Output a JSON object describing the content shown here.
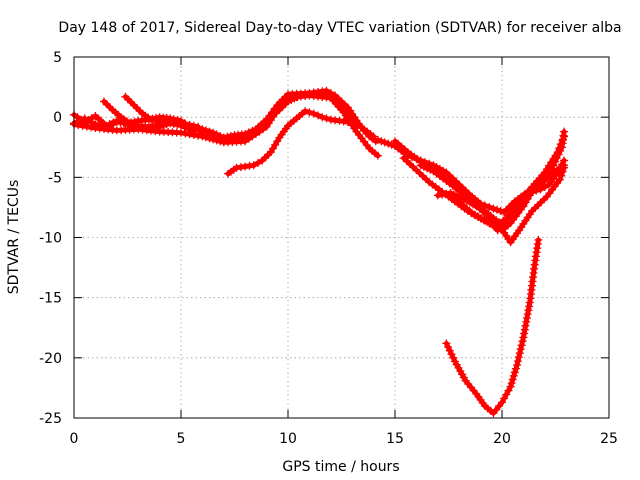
{
  "chart_data": {
    "type": "line",
    "title": "Day 148 of 2017, Sidereal Day-to-day VTEC variation (SDTVAR) for receiver alba",
    "xlabel": "GPS time / hours",
    "ylabel": "SDTVAR / TECUs",
    "xlim": [
      0,
      25
    ],
    "ylim": [
      -25,
      5
    ],
    "xticks": [
      0,
      5,
      10,
      15,
      20,
      25
    ],
    "yticks": [
      -25,
      -20,
      -15,
      -10,
      -5,
      0,
      5
    ],
    "grid": true,
    "legend": "none",
    "series_color": "#ff0000",
    "series": [
      {
        "name": "track-1",
        "points": [
          [
            0,
            -0.6
          ],
          [
            1,
            -0.9
          ],
          [
            2,
            -1.1
          ],
          [
            3,
            -1.0
          ],
          [
            4,
            -1.2
          ],
          [
            5,
            -1.3
          ],
          [
            6,
            -1.6
          ],
          [
            7,
            -2.1
          ],
          [
            8,
            -2.0
          ],
          [
            9,
            -0.8
          ],
          [
            9.5,
            0.6
          ],
          [
            10,
            1.6
          ],
          [
            11,
            1.8
          ],
          [
            12,
            1.6
          ],
          [
            12.6,
            0.4
          ],
          [
            13.2,
            -1.2
          ],
          [
            13.8,
            -2.6
          ],
          [
            14.2,
            -3.2
          ]
        ]
      },
      {
        "name": "track-2",
        "points": [
          [
            0,
            0.2
          ],
          [
            0.5,
            -0.4
          ],
          [
            1,
            0.1
          ],
          [
            1.5,
            -0.7
          ],
          [
            2,
            -0.3
          ],
          [
            2.5,
            -0.6
          ],
          [
            3,
            -0.8
          ],
          [
            3.5,
            -1.0
          ],
          [
            4,
            -0.8
          ],
          [
            4.5,
            -0.5
          ],
          [
            5,
            -0.7
          ],
          [
            5.5,
            -1.1
          ],
          [
            6,
            -1.0
          ],
          [
            6.5,
            -1.3
          ],
          [
            7,
            -1.7
          ],
          [
            7.5,
            -1.5
          ],
          [
            8,
            -1.4
          ],
          [
            8.5,
            -1.0
          ],
          [
            9,
            -0.2
          ],
          [
            9.5,
            1.0
          ],
          [
            10,
            1.9
          ],
          [
            11,
            2.0
          ],
          [
            11.8,
            2.2
          ],
          [
            12.2,
            1.8
          ],
          [
            12.8,
            0.8
          ],
          [
            13.4,
            -0.8
          ],
          [
            14,
            -1.6
          ]
        ]
      },
      {
        "name": "track-3",
        "points": [
          [
            0,
            -0.5
          ],
          [
            0.5,
            -0.1
          ],
          [
            1,
            -0.6
          ],
          [
            1.5,
            -0.9
          ],
          [
            2,
            -0.4
          ],
          [
            2.5,
            -0.5
          ],
          [
            3,
            -0.3
          ],
          [
            3.5,
            -0.2
          ],
          [
            4,
            0.0
          ],
          [
            4.5,
            -0.1
          ],
          [
            5,
            -0.3
          ],
          [
            5.5,
            -0.9
          ],
          [
            6,
            -1.2
          ],
          [
            6.5,
            -1.5
          ],
          [
            7,
            -1.8
          ],
          [
            7.5,
            -1.9
          ],
          [
            8,
            -1.7
          ],
          [
            8.6,
            -1.2
          ],
          [
            9,
            -0.4
          ],
          [
            9.6,
            0.6
          ],
          [
            10,
            1.3
          ],
          [
            10.6,
            1.8
          ],
          [
            11.2,
            2.0
          ],
          [
            12,
            1.9
          ],
          [
            12.6,
            1.0
          ],
          [
            13.2,
            -0.4
          ],
          [
            13.8,
            -1.6
          ],
          [
            14.1,
            -2.0
          ]
        ]
      },
      {
        "name": "track-4",
        "points": [
          [
            1.4,
            1.3
          ],
          [
            1.8,
            0.6
          ],
          [
            2.2,
            0.0
          ],
          [
            2.6,
            -0.5
          ],
          [
            3,
            -0.7
          ],
          [
            3.5,
            -0.8
          ],
          [
            4,
            -0.6
          ]
        ]
      },
      {
        "name": "track-5",
        "points": [
          [
            2.4,
            1.7
          ],
          [
            2.8,
            1.0
          ],
          [
            3.2,
            0.3
          ],
          [
            3.6,
            -0.2
          ],
          [
            4.2,
            -0.4
          ],
          [
            5,
            -0.5
          ],
          [
            5.8,
            -0.8
          ]
        ]
      },
      {
        "name": "track-6",
        "points": [
          [
            7.2,
            -4.7
          ],
          [
            7.6,
            -4.2
          ],
          [
            8,
            -4.1
          ],
          [
            8.4,
            -4.0
          ],
          [
            8.8,
            -3.6
          ],
          [
            9.2,
            -2.9
          ],
          [
            9.6,
            -1.7
          ],
          [
            10,
            -0.7
          ],
          [
            10.4,
            -0.1
          ],
          [
            10.8,
            0.5
          ],
          [
            11.2,
            0.3
          ],
          [
            11.6,
            0.0
          ],
          [
            12,
            -0.2
          ],
          [
            12.4,
            -0.3
          ],
          [
            12.8,
            -0.4
          ],
          [
            13.2,
            -0.6
          ]
        ]
      },
      {
        "name": "track-7",
        "points": [
          [
            14.2,
            -1.9
          ],
          [
            15,
            -2.4
          ],
          [
            15.6,
            -3.2
          ],
          [
            16.2,
            -3.6
          ],
          [
            16.8,
            -4.0
          ],
          [
            17.4,
            -4.6
          ],
          [
            18,
            -5.6
          ],
          [
            18.6,
            -6.6
          ],
          [
            19,
            -7.2
          ],
          [
            19.6,
            -7.6
          ],
          [
            20.1,
            -7.9
          ],
          [
            20.6,
            -7.0
          ],
          [
            21.2,
            -6.2
          ],
          [
            21.8,
            -5.6
          ],
          [
            22.4,
            -4.6
          ],
          [
            22.9,
            -4.0
          ]
        ]
      },
      {
        "name": "track-8",
        "points": [
          [
            15,
            -2.0
          ],
          [
            15.6,
            -2.9
          ],
          [
            16.2,
            -3.7
          ],
          [
            16.8,
            -4.3
          ],
          [
            17.4,
            -5.0
          ],
          [
            18,
            -6.1
          ],
          [
            18.5,
            -6.8
          ],
          [
            19,
            -7.6
          ],
          [
            19.5,
            -8.6
          ],
          [
            19.8,
            -9.0
          ],
          [
            20.2,
            -8.4
          ],
          [
            20.6,
            -7.4
          ],
          [
            21.2,
            -6.5
          ],
          [
            21.8,
            -5.6
          ],
          [
            22.4,
            -4.0
          ],
          [
            22.8,
            -2.5
          ],
          [
            22.9,
            -1.2
          ]
        ]
      },
      {
        "name": "track-9",
        "points": [
          [
            15.4,
            -3.4
          ],
          [
            16,
            -4.4
          ],
          [
            16.6,
            -5.4
          ],
          [
            17.2,
            -6.2
          ],
          [
            17.8,
            -7.0
          ],
          [
            18.4,
            -7.8
          ],
          [
            19,
            -8.4
          ],
          [
            19.6,
            -9.0
          ],
          [
            20,
            -9.4
          ],
          [
            20.4,
            -8.8
          ],
          [
            21,
            -7.4
          ],
          [
            21.4,
            -6.2
          ],
          [
            21.8,
            -6.0
          ],
          [
            22.2,
            -5.6
          ],
          [
            22.6,
            -4.6
          ],
          [
            22.9,
            -3.6
          ]
        ]
      },
      {
        "name": "track-10",
        "points": [
          [
            16.2,
            -4.0
          ],
          [
            16.8,
            -4.5
          ],
          [
            17.4,
            -5.3
          ],
          [
            18,
            -6.1
          ],
          [
            18.6,
            -7.1
          ],
          [
            19.2,
            -7.8
          ],
          [
            19.6,
            -8.4
          ],
          [
            20,
            -8.9
          ],
          [
            20.4,
            -8.2
          ],
          [
            20.9,
            -7.2
          ],
          [
            21.4,
            -5.8
          ],
          [
            22,
            -4.6
          ],
          [
            22.6,
            -2.9
          ],
          [
            22.9,
            -1.6
          ]
        ]
      },
      {
        "name": "track-11",
        "points": [
          [
            17,
            -6.5
          ],
          [
            17.6,
            -6.3
          ],
          [
            18.2,
            -6.8
          ],
          [
            18.8,
            -7.4
          ],
          [
            19.3,
            -8.1
          ],
          [
            19.7,
            -8.7
          ],
          [
            20.1,
            -9.6
          ],
          [
            20.4,
            -10.4
          ],
          [
            20.8,
            -9.4
          ],
          [
            21.4,
            -7.8
          ],
          [
            22.1,
            -6.6
          ],
          [
            22.7,
            -5.2
          ],
          [
            22.9,
            -4.2
          ]
        ]
      },
      {
        "name": "track-12",
        "points": [
          [
            17.6,
            -6.4
          ],
          [
            18.1,
            -7.2
          ],
          [
            18.6,
            -8.0
          ],
          [
            19.2,
            -8.6
          ],
          [
            19.6,
            -9.0
          ],
          [
            19.8,
            -9.4
          ]
        ]
      },
      {
        "name": "track-13",
        "points": [
          [
            17.4,
            -18.8
          ],
          [
            17.8,
            -20.3
          ],
          [
            18.3,
            -21.9
          ],
          [
            18.8,
            -23.0
          ],
          [
            19.2,
            -24.0
          ],
          [
            19.6,
            -24.6
          ],
          [
            20,
            -23.7
          ],
          [
            20.4,
            -22.4
          ],
          [
            20.7,
            -20.6
          ],
          [
            21,
            -18.3
          ],
          [
            21.3,
            -15.4
          ],
          [
            21.5,
            -12.6
          ],
          [
            21.7,
            -10.2
          ]
        ]
      }
    ]
  }
}
